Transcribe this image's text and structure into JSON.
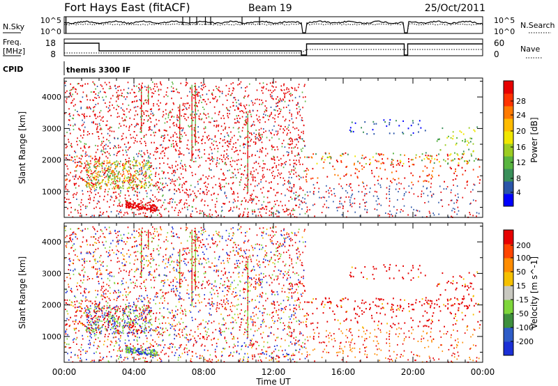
{
  "header": {
    "site": "Fort Hays East (fitACF)",
    "beam": "Beam 19",
    "date": "25/Oct/2011"
  },
  "noise_panel": {
    "left_label": "N.Sky",
    "right_label": "N.Search",
    "left_ticks": [
      "10^5",
      "10^0"
    ],
    "right_ticks": [
      "10^5",
      "10^0"
    ]
  },
  "freq_panel": {
    "left_label_1": "Freq.",
    "left_label_2": "[MHz]",
    "right_label": "Nave",
    "left_ticks": [
      "18",
      "8"
    ],
    "right_ticks": [
      "60",
      "0"
    ]
  },
  "cpid": {
    "label": "CPID",
    "value": "themis 3300 IF"
  },
  "colors": {
    "scatter_red": "#ee1111",
    "scatter_green": "#33bb33",
    "scatter_blue": "#2244cc",
    "ground_grey": "#c8c8c0"
  },
  "chart_data": [
    {
      "type": "heatmap",
      "panel": "power",
      "ylabel": "Slant Range [km]",
      "y_ticks": [
        "1000",
        "2000",
        "3000",
        "4000"
      ],
      "ylim": [
        180,
        4600
      ],
      "colorbar_label": "Power [dB]",
      "colorbar_ticks": [
        "4",
        "8",
        "12",
        "16",
        "20",
        "24",
        "28"
      ],
      "colorbar_colors": [
        "#0000ff",
        "#2a55a8",
        "#3a8f5a",
        "#59b540",
        "#9ccc22",
        "#f0e600",
        "#ffbb00",
        "#ff7a00",
        "#ff3300",
        "#e60000"
      ],
      "bands": [
        {
          "t": [
            0.0,
            2.0
          ],
          "r": [
            1350,
            2200
          ],
          "level": "high"
        },
        {
          "t": [
            13.7,
            23.9
          ],
          "r": [
            1300,
            2250
          ],
          "level": "high"
        },
        {
          "t": [
            13.9,
            23.9
          ],
          "r": [
            1900,
            2250
          ],
          "level": "mid"
        },
        {
          "t": [
            21.3,
            23.9
          ],
          "r": [
            2200,
            3100
          ],
          "level": "mid"
        },
        {
          "t": [
            16.3,
            20.7
          ],
          "r": [
            2800,
            3300
          ],
          "level": "low"
        }
      ]
    },
    {
      "type": "heatmap",
      "panel": "velocity",
      "ylabel": "Slant Range [km]",
      "y_ticks": [
        "1000",
        "2000",
        "3000",
        "4000"
      ],
      "ylim": [
        180,
        4600
      ],
      "colorbar_label": "Velocity [m s^-1]",
      "colorbar_ticks": [
        "200",
        "100",
        "50",
        "15",
        "-15",
        "-50",
        "-100",
        "-200"
      ],
      "colorbar_colors": [
        "#1a2fd6",
        "#2e5cc7",
        "#3e8f3e",
        "#7ed63b",
        "#c8c8c0",
        "#f5c000",
        "#ff8c00",
        "#ff4500",
        "#e60000"
      ]
    }
  ],
  "x_axis": {
    "label": "Time UT",
    "ticks": [
      "00:00",
      "04:00",
      "08:00",
      "12:00",
      "16:00",
      "20:00",
      "00:00"
    ],
    "range_hours": [
      0,
      24
    ]
  }
}
